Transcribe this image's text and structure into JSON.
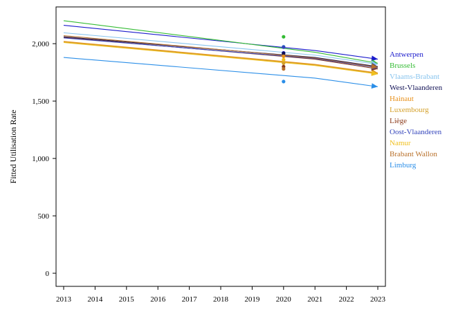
{
  "chart_data": {
    "type": "line",
    "ylabel": "Fitted Utilisation Rate",
    "xlabel": "",
    "x": [
      2013,
      2014,
      2015,
      2016,
      2017,
      2018,
      2019,
      2020,
      2021,
      2022,
      2023
    ],
    "xlim": [
      2013,
      2023
    ],
    "ylim": [
      -60,
      2260
    ],
    "yticks": [
      0,
      500,
      1000,
      1500,
      2000
    ],
    "ytick_labels": [
      "0",
      "500",
      "1,000",
      "1,500",
      "2,000"
    ],
    "xtick_labels": [
      "2013",
      "2014",
      "2015",
      "2016",
      "2017",
      "2018",
      "2019",
      "2020",
      "2021",
      "2022",
      "2023"
    ],
    "grid": false,
    "legend_position": "right",
    "marker_year": 2020,
    "series": [
      {
        "name": "Antwerpen",
        "color": "#1a1acc",
        "line": [
          [
            2013,
            2160
          ],
          [
            2021,
            1940
          ],
          [
            2023,
            1865
          ]
        ],
        "point": 1920
      },
      {
        "name": "Brussels",
        "color": "#33bb33",
        "line": [
          [
            2013,
            2200
          ],
          [
            2021,
            1925
          ],
          [
            2023,
            1830
          ]
        ],
        "point": 2060
      },
      {
        "name": "Vlaams-Brabant",
        "color": "#88c4ee",
        "line": [
          [
            2013,
            2095
          ],
          [
            2021,
            1900
          ],
          [
            2023,
            1820
          ]
        ],
        "point": 1975
      },
      {
        "name": "West-Vlaanderen",
        "color": "#111155",
        "line": [
          [
            2013,
            2060
          ],
          [
            2021,
            1880
          ],
          [
            2023,
            1800
          ]
        ],
        "point": 1915
      },
      {
        "name": "Hainaut",
        "color": "#e8901a",
        "line": [
          [
            2013,
            2020
          ],
          [
            2021,
            1820
          ],
          [
            2023,
            1745
          ]
        ],
        "point": 1890
      },
      {
        "name": "Luxembourg",
        "color": "#d4a02a",
        "line": [
          [
            2013,
            2015
          ],
          [
            2021,
            1815
          ],
          [
            2023,
            1740
          ]
        ],
        "point": 1830
      },
      {
        "name": "Liège",
        "color": "#8b3a1a",
        "line": [
          [
            2013,
            2055
          ],
          [
            2021,
            1865
          ],
          [
            2023,
            1780
          ]
        ],
        "point": 1800
      },
      {
        "name": "Oost-Vlaanderen",
        "color": "#3344bb",
        "line": [
          [
            2013,
            2050
          ],
          [
            2021,
            1870
          ],
          [
            2023,
            1790
          ]
        ],
        "point": 1970
      },
      {
        "name": "Namur",
        "color": "#f0c020",
        "line": [
          [
            2013,
            2010
          ],
          [
            2021,
            1810
          ],
          [
            2023,
            1735
          ]
        ],
        "point": 1860
      },
      {
        "name": "Brabant Wallon",
        "color": "#b8702a",
        "line": [
          [
            2013,
            2070
          ],
          [
            2021,
            1875
          ],
          [
            2023,
            1795
          ]
        ],
        "point": 1780
      },
      {
        "name": "Limburg",
        "color": "#2a8ee8",
        "line": [
          [
            2013,
            1880
          ],
          [
            2021,
            1700
          ],
          [
            2023,
            1625
          ]
        ],
        "point": 1670
      }
    ]
  }
}
